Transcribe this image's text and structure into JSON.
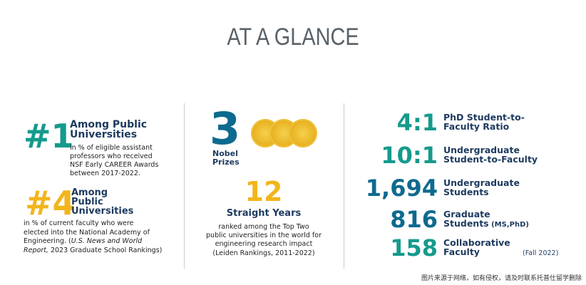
{
  "title": "AT A GLANCE",
  "left": [
    {
      "number": "#1",
      "heading": [
        "Among Public",
        "Universities"
      ],
      "description": [
        "in % of eligible assistant",
        "professors who received",
        "NSF Early CAREER Awards",
        "between 2017-2022."
      ]
    },
    {
      "number": "#4",
      "heading": [
        "Among",
        "Public",
        "Universities"
      ],
      "description": [
        [
          "in % of current faculty who were"
        ],
        [
          "elected into the National Academy of"
        ],
        [
          "Engineering. (",
          "U.S. News and World"
        ],
        [
          "Report,",
          " 2023 Graduate School Rankings)"
        ]
      ]
    }
  ],
  "middle": {
    "nobel": {
      "number": "3",
      "label": [
        "Nobel",
        "Prizes"
      ]
    },
    "years": {
      "number": "12",
      "heading": "Straight Years",
      "description": [
        "ranked among the Top Two",
        "public universities in the world for",
        "engineering research impact"
      ],
      "source": "(Leiden Rankings, 2011-2022)"
    }
  },
  "right": {
    "rows": [
      {
        "number": "4:1",
        "label": [
          "PhD Student-to-",
          "Faculty Ratio"
        ]
      },
      {
        "number": "10:1",
        "label": [
          "Undergraduate",
          "Student-to-Faculty"
        ]
      },
      {
        "number": "1,694",
        "label": [
          "Undergraduate",
          "Students"
        ]
      },
      {
        "number": "816",
        "label": [
          "Graduate",
          "Students"
        ],
        "suffix": " (MS,PhD)"
      },
      {
        "number": "158",
        "label": [
          "Collaborative",
          "Faculty"
        ]
      }
    ],
    "note": "(Fall 2022)"
  },
  "footer": "图片来源于网络，如有侵权，请及时联系托普仕留学删除"
}
